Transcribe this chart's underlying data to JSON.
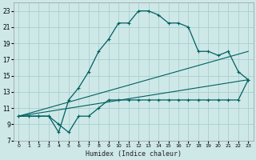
{
  "xlabel": "Humidex (Indice chaleur)",
  "bg_color": "#cee8e8",
  "grid_color": "#aacfcf",
  "line_color": "#006060",
  "xlim": [
    -0.5,
    23.5
  ],
  "ylim": [
    7,
    24
  ],
  "yticks": [
    7,
    9,
    11,
    13,
    15,
    17,
    19,
    21,
    23
  ],
  "xticks": [
    0,
    1,
    2,
    3,
    4,
    5,
    6,
    7,
    8,
    9,
    10,
    11,
    12,
    13,
    14,
    15,
    16,
    17,
    18,
    19,
    20,
    21,
    22,
    23
  ],
  "curve_upper": {
    "x": [
      0,
      1,
      2,
      3,
      4,
      5,
      6,
      7,
      8,
      9,
      10,
      11,
      12,
      13,
      14,
      15,
      16,
      17,
      18,
      19,
      20,
      21,
      22,
      23
    ],
    "y": [
      10.0,
      10.0,
      10.0,
      10.0,
      8.0,
      12.0,
      13.5,
      15.5,
      18.0,
      19.5,
      21.5,
      21.5,
      23.0,
      23.0,
      22.5,
      21.5,
      21.5,
      21.0,
      18.0,
      18.0,
      17.5,
      18.0,
      15.5,
      14.5
    ]
  },
  "curve_lower": {
    "x": [
      0,
      1,
      2,
      3,
      4,
      5,
      6,
      7,
      8,
      9,
      10,
      11,
      12,
      13,
      14,
      15,
      16,
      17,
      18,
      19,
      20,
      21,
      22,
      23
    ],
    "y": [
      10.0,
      10.0,
      10.0,
      10.0,
      9.0,
      8.0,
      10.0,
      10.0,
      11.0,
      12.0,
      12.0,
      12.0,
      12.0,
      12.0,
      12.0,
      12.0,
      12.0,
      12.0,
      12.0,
      12.0,
      12.0,
      12.0,
      12.0,
      14.5
    ]
  },
  "curve_diag1": {
    "x": [
      0,
      23
    ],
    "y": [
      10.0,
      18.0
    ]
  },
  "curve_diag2": {
    "x": [
      0,
      23
    ],
    "y": [
      10.0,
      14.5
    ]
  }
}
